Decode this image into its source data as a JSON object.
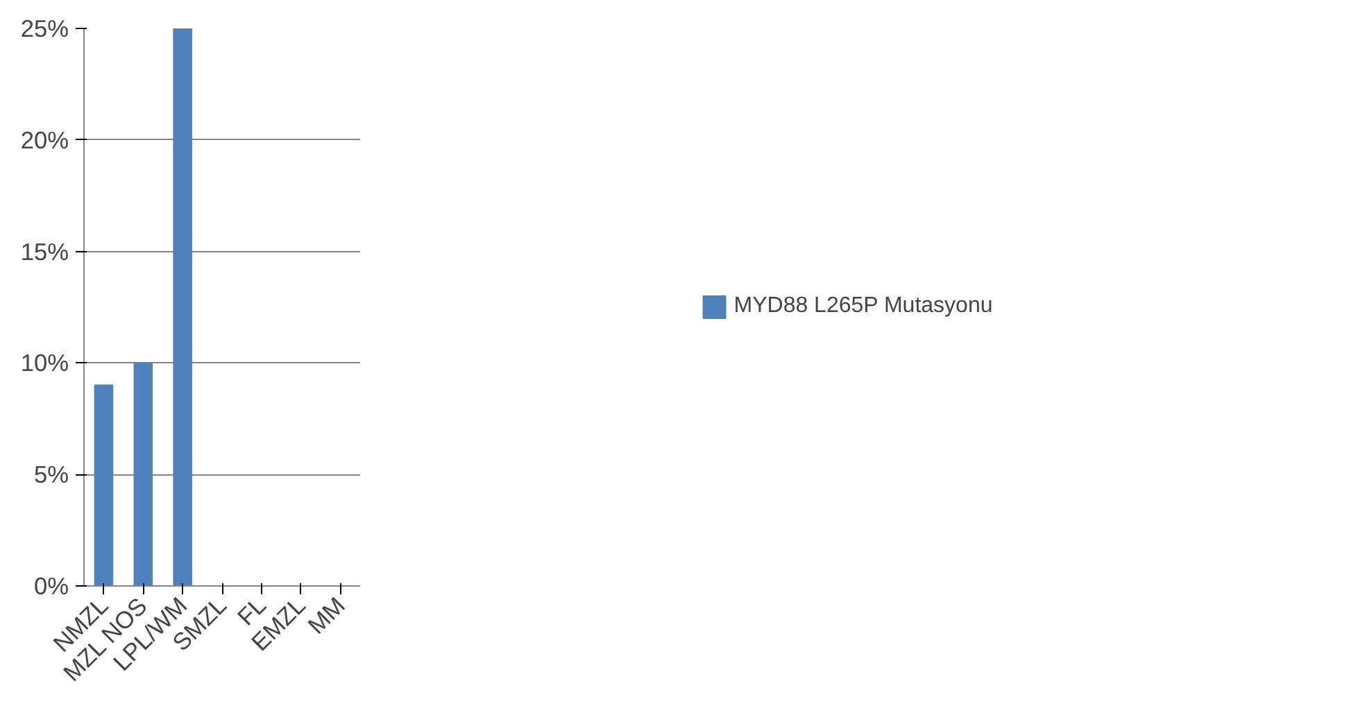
{
  "chart_data": {
    "type": "bar",
    "categories": [
      "NMZL",
      "MZL NOS",
      "LPL/WM",
      "SMZL",
      "FL",
      "EMZL",
      "MM"
    ],
    "series": [
      {
        "name": "MYD88 L265P Mutasyonu",
        "color": "#4f81bd",
        "values": [
          9,
          10,
          25,
          0,
          0,
          0,
          0
        ]
      }
    ],
    "ylim": [
      0,
      25
    ],
    "yticks": [
      {
        "value": 0,
        "label": "0%"
      },
      {
        "value": 5,
        "label": "5%"
      },
      {
        "value": 10,
        "label": "10%"
      },
      {
        "value": 15,
        "label": "15%"
      },
      {
        "value": 20,
        "label": "20%"
      },
      {
        "value": 25,
        "label": "25%"
      }
    ],
    "grid": "y",
    "legend": "right"
  }
}
